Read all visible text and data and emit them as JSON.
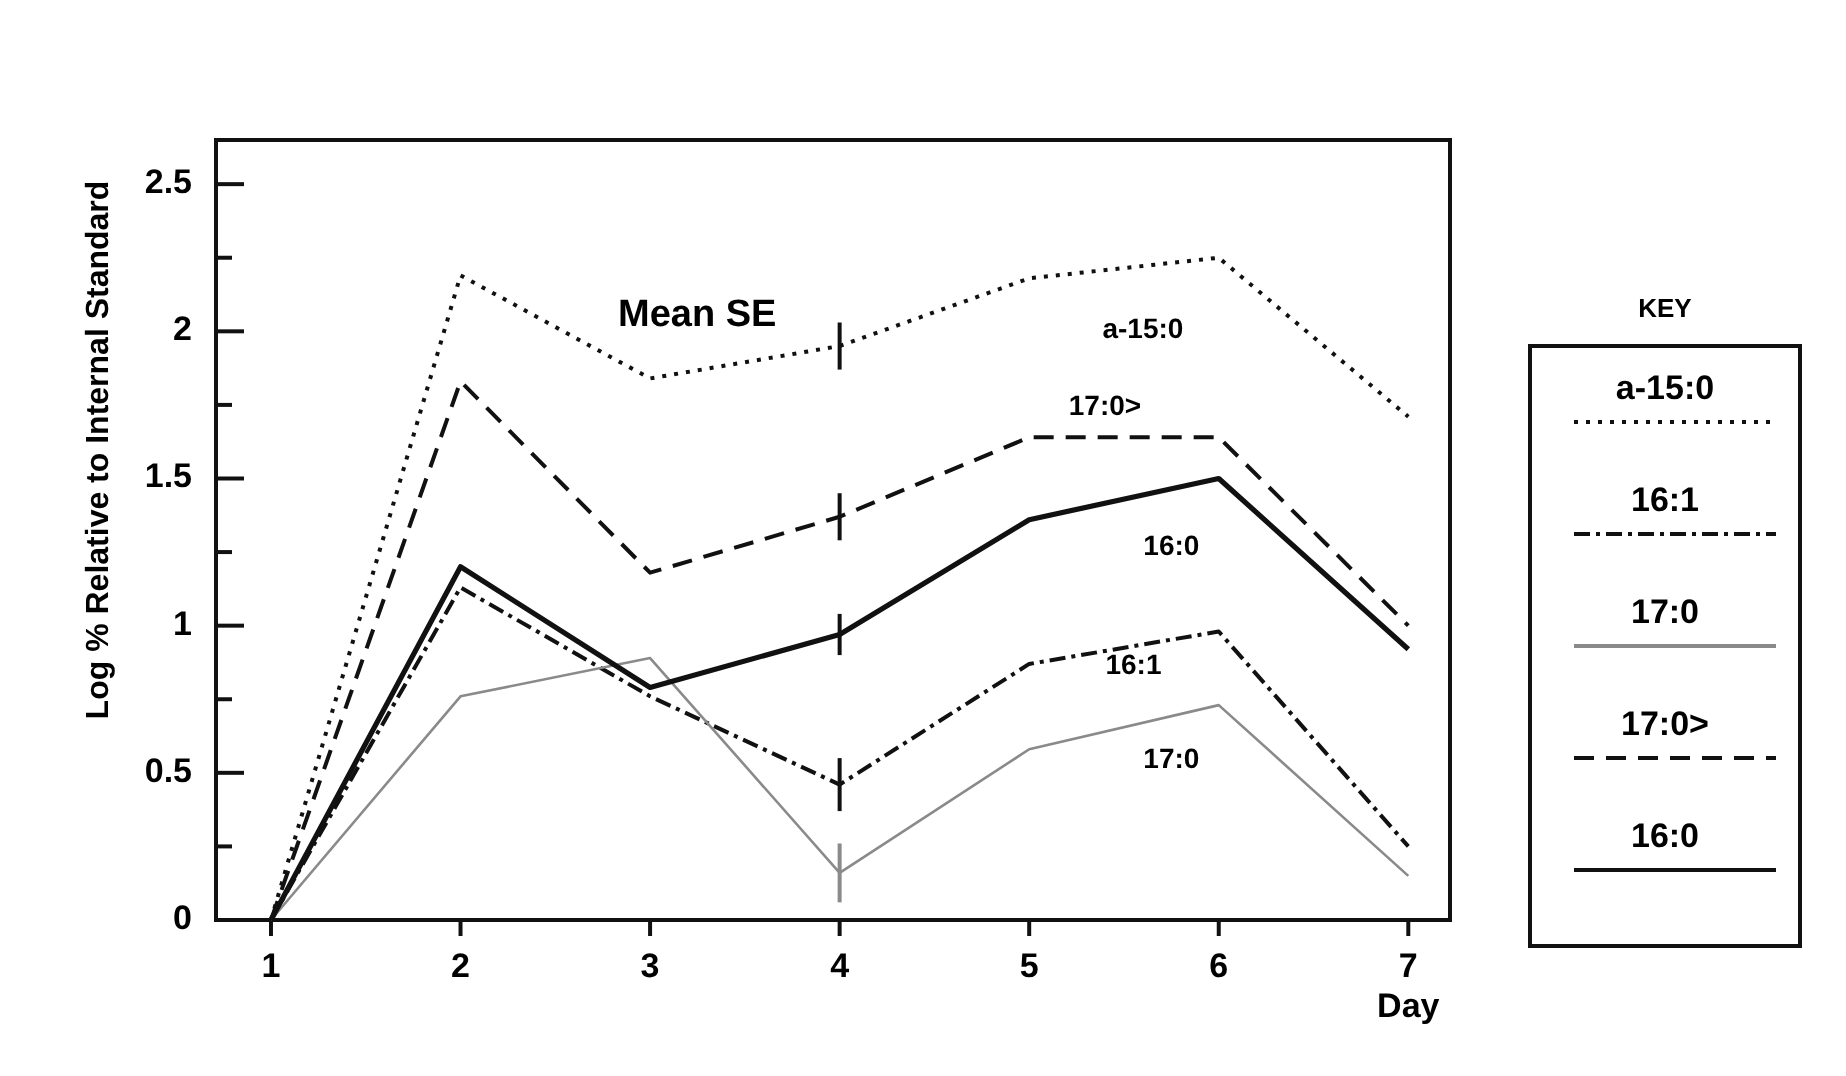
{
  "chart_data": {
    "type": "line",
    "xlabel": "Day",
    "ylabel": "Log % Relative to Internal Standard",
    "legend_title": "KEY",
    "legend": "right",
    "annotations": [
      "Mean SE"
    ],
    "x": [
      1,
      2,
      3,
      4,
      5,
      6,
      7
    ],
    "xlim": [
      0.71,
      7.22
    ],
    "xticks": [
      1,
      2,
      3,
      4,
      5,
      6,
      7
    ],
    "ylim": [
      0,
      2.65
    ],
    "yticks": [
      0,
      {
        "value": 0.25,
        "label": null
      },
      0.5,
      {
        "value": 0.75,
        "label": null
      },
      1,
      {
        "value": 1.25,
        "label": null
      },
      1.5,
      {
        "value": 1.75,
        "label": null
      },
      2,
      {
        "value": 2.25,
        "label": null
      },
      2.5
    ],
    "series": [
      {
        "name": "a-15:0",
        "color": "#111111",
        "line_style": "dotted",
        "values": [
          0,
          2.19,
          1.84,
          1.95,
          2.18,
          2.25,
          1.71
        ],
        "errors": [
          null,
          null,
          null,
          0.08,
          null,
          null,
          null
        ]
      },
      {
        "name": "16:1",
        "color": "#111111",
        "line_style": "dashdot",
        "values": [
          0,
          1.13,
          0.76,
          0.46,
          0.87,
          0.98,
          0.25
        ],
        "errors": [
          null,
          null,
          null,
          0.09,
          null,
          null,
          null
        ]
      },
      {
        "name": "17:0",
        "color": "#8a8a8a",
        "line_style": "solid",
        "values": [
          0,
          0.76,
          0.89,
          0.16,
          0.58,
          0.73,
          0.15
        ],
        "errors": [
          null,
          null,
          null,
          0.1,
          null,
          null,
          null
        ]
      },
      {
        "name": "17:0>",
        "color": "#111111",
        "line_style": "dashed",
        "values": [
          0,
          1.83,
          1.18,
          1.37,
          1.64,
          1.64,
          1.0
        ],
        "errors": [
          null,
          null,
          null,
          0.08,
          null,
          null,
          null
        ]
      },
      {
        "name": "16:0",
        "color": "#111111",
        "line_style": "solid",
        "values": [
          0,
          1.2,
          0.79,
          0.97,
          1.36,
          1.5,
          0.92
        ],
        "errors": [
          null,
          null,
          null,
          0.07,
          null,
          null,
          null
        ]
      }
    ]
  }
}
